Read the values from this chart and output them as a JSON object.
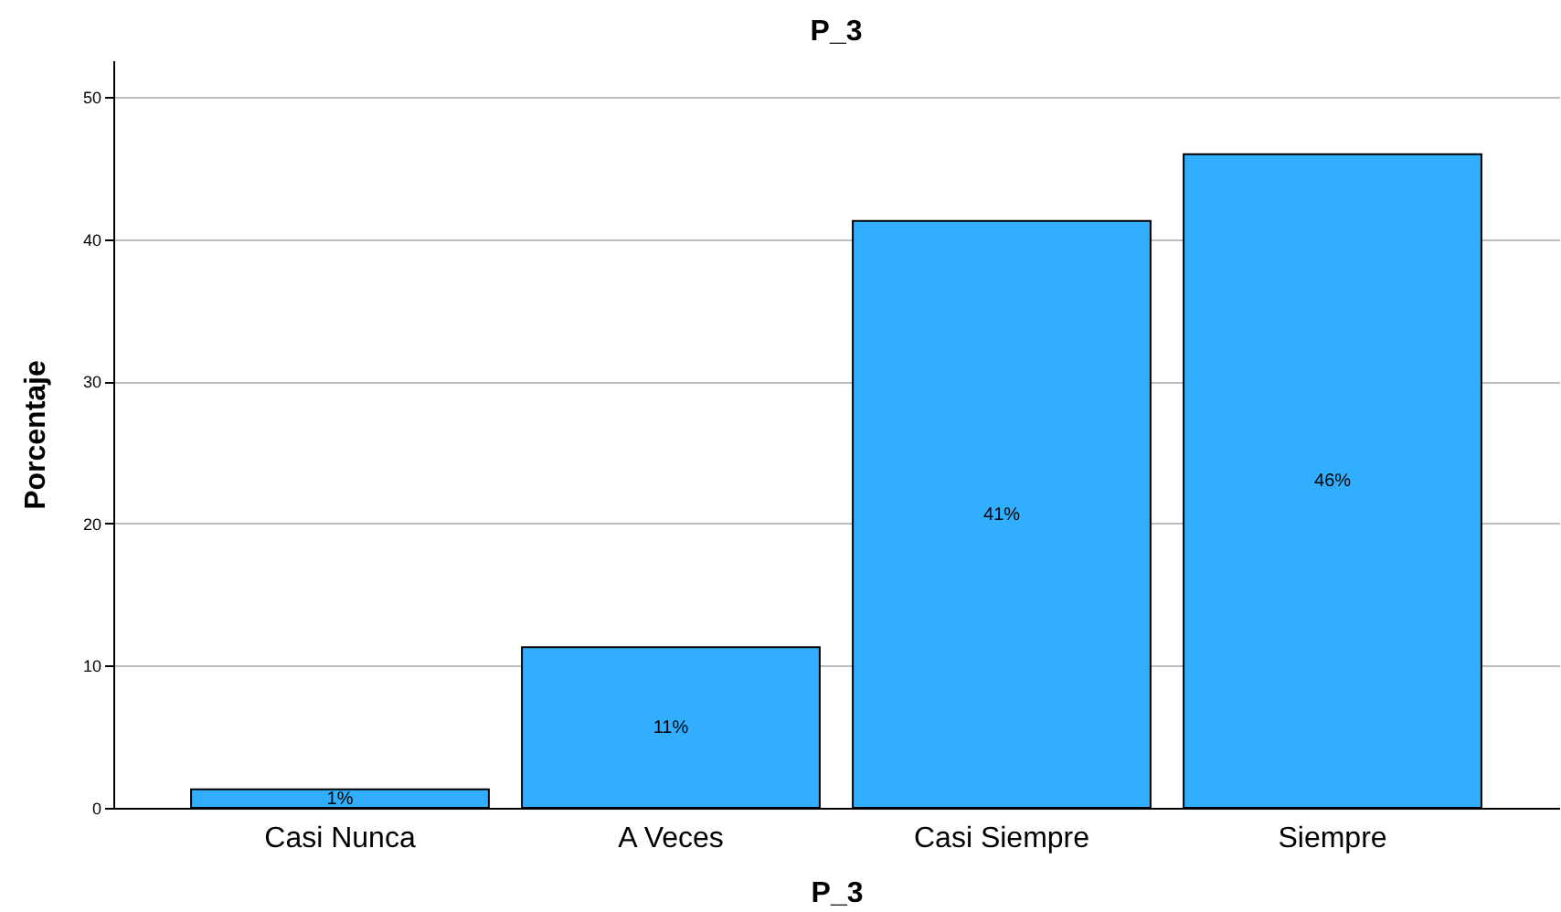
{
  "chart_data": {
    "type": "bar",
    "title": "P_3",
    "xlabel": "P_3",
    "ylabel": "Porcentaje",
    "categories": [
      "Casi Nunca",
      "A Veces",
      "Casi Siempre",
      "Siempre"
    ],
    "values": [
      1.3,
      11.3,
      41.3,
      46.0
    ],
    "value_labels": [
      "1%",
      "11%",
      "41%",
      "46%"
    ],
    "color": "#31aefe",
    "ylim": [
      0,
      52.6
    ],
    "yticks": [
      0,
      10,
      20,
      30,
      40,
      50
    ],
    "grid": "y"
  }
}
